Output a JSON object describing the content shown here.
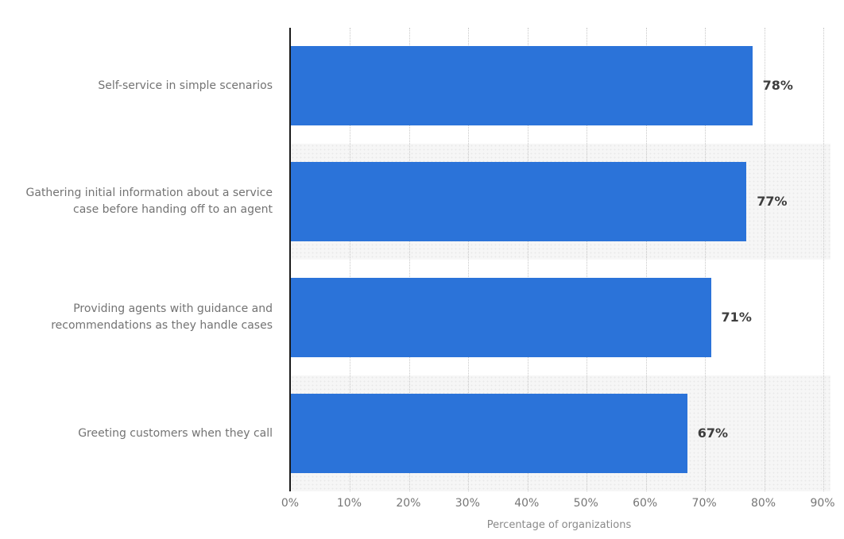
{
  "chart_data": {
    "type": "bar",
    "orientation": "horizontal",
    "title": "",
    "categories": [
      "Self-service in simple scenarios",
      "Gathering initial information about a service case before handing off to an agent",
      "Providing agents with guidance and recommendations as they handle cases",
      "Greeting customers when they call"
    ],
    "values": [
      78,
      77,
      71,
      67
    ],
    "value_labels": [
      "78%",
      "77%",
      "71%",
      "67%"
    ],
    "xlabel": "Percentage of organizations",
    "x_ticks": [
      "0%",
      "10%",
      "20%",
      "30%",
      "40%",
      "50%",
      "60%",
      "70%",
      "80%",
      "90%"
    ],
    "xlim": [
      0,
      90
    ],
    "grid": "vertical dotted gridlines every 10%",
    "legend": "none",
    "row_banding": "alternate rows (2nd and 4th) shaded light gray behind bars"
  },
  "colors": {
    "bar": "#2b73d9",
    "band": "#f6f6f6",
    "band_dot": "#e9e9e9",
    "axis": "#1a1a1a",
    "grid": "#c8c8c8",
    "category_label": "#737373",
    "value_label": "#3e3e3e",
    "tick_label": "#767676",
    "axis_title": "#8a8a8a",
    "background": "#ffffff"
  }
}
